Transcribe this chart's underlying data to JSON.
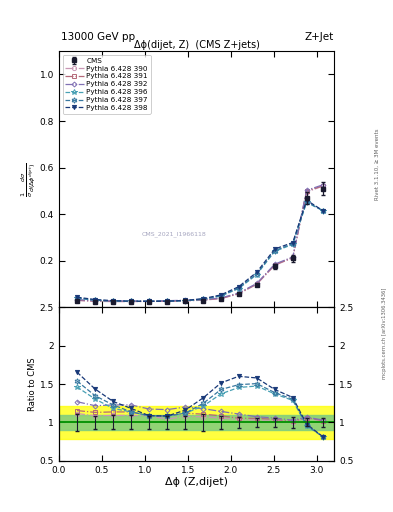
{
  "title_top": "13000 GeV pp",
  "title_right": "Z+Jet",
  "plot_title": "Δϕ(dijet, Z)  (CMS Z+jets)",
  "xlabel": "Δϕ (Z,dijet)",
  "ylabel_main": "$\\frac{1}{\\sigma}\\frac{d\\sigma}{d(\\Delta\\phi^{dijet})}$",
  "ylabel_ratio": "Ratio to CMS",
  "rivet_label": "Rivet 3.1.10, ≥ 3M events",
  "mcplots_label": "mcplots.cern.ch [arXiv:1306.3436]",
  "watermark": "CMS_2021_I1966118",
  "cms_x": [
    0.21,
    0.42,
    0.63,
    0.84,
    1.05,
    1.26,
    1.47,
    1.68,
    1.885,
    2.09,
    2.3,
    2.51,
    2.72,
    2.88,
    3.07
  ],
  "cms_y": [
    0.026,
    0.023,
    0.022,
    0.022,
    0.023,
    0.024,
    0.025,
    0.028,
    0.035,
    0.055,
    0.095,
    0.175,
    0.21,
    0.47,
    0.51
  ],
  "cms_yerr": [
    0.003,
    0.002,
    0.002,
    0.002,
    0.002,
    0.002,
    0.002,
    0.003,
    0.003,
    0.004,
    0.006,
    0.01,
    0.015,
    0.025,
    0.03
  ],
  "py390_x": [
    0.21,
    0.42,
    0.63,
    0.84,
    1.05,
    1.26,
    1.47,
    1.68,
    1.885,
    2.09,
    2.3,
    2.51,
    2.72,
    2.88,
    3.07
  ],
  "py390_y": [
    0.029,
    0.025,
    0.024,
    0.024,
    0.025,
    0.025,
    0.027,
    0.03,
    0.037,
    0.057,
    0.098,
    0.18,
    0.212,
    0.495,
    0.52
  ],
  "py391_x": [
    0.21,
    0.42,
    0.63,
    0.84,
    1.05,
    1.26,
    1.47,
    1.68,
    1.885,
    2.09,
    2.3,
    2.51,
    2.72,
    2.88,
    3.07
  ],
  "py391_y": [
    0.03,
    0.026,
    0.025,
    0.025,
    0.025,
    0.026,
    0.028,
    0.031,
    0.038,
    0.058,
    0.1,
    0.182,
    0.213,
    0.498,
    0.522
  ],
  "py392_x": [
    0.21,
    0.42,
    0.63,
    0.84,
    1.05,
    1.26,
    1.47,
    1.68,
    1.885,
    2.09,
    2.3,
    2.51,
    2.72,
    2.88,
    3.07
  ],
  "py392_y": [
    0.033,
    0.028,
    0.027,
    0.027,
    0.027,
    0.028,
    0.03,
    0.033,
    0.04,
    0.061,
    0.102,
    0.185,
    0.216,
    0.502,
    0.526
  ],
  "py396_x": [
    0.21,
    0.42,
    0.63,
    0.84,
    1.05,
    1.26,
    1.47,
    1.68,
    1.885,
    2.09,
    2.3,
    2.51,
    2.72,
    2.88,
    3.07
  ],
  "py396_y": [
    0.038,
    0.03,
    0.026,
    0.025,
    0.025,
    0.026,
    0.028,
    0.034,
    0.048,
    0.08,
    0.14,
    0.24,
    0.27,
    0.45,
    0.415
  ],
  "py397_x": [
    0.21,
    0.42,
    0.63,
    0.84,
    1.05,
    1.26,
    1.47,
    1.68,
    1.885,
    2.09,
    2.3,
    2.51,
    2.72,
    2.88,
    3.07
  ],
  "py397_y": [
    0.04,
    0.031,
    0.027,
    0.025,
    0.025,
    0.026,
    0.028,
    0.035,
    0.05,
    0.082,
    0.143,
    0.243,
    0.273,
    0.453,
    0.415
  ],
  "py398_x": [
    0.21,
    0.42,
    0.63,
    0.84,
    1.05,
    1.26,
    1.47,
    1.68,
    1.885,
    2.09,
    2.3,
    2.51,
    2.72,
    2.88,
    3.07
  ],
  "py398_y": [
    0.043,
    0.033,
    0.028,
    0.026,
    0.025,
    0.026,
    0.029,
    0.037,
    0.053,
    0.088,
    0.15,
    0.25,
    0.278,
    0.46,
    0.415
  ],
  "color_390": "#c896b4",
  "color_391": "#b46878",
  "color_392": "#8070b4",
  "color_396": "#48a0b4",
  "color_397": "#3878a0",
  "color_398": "#183878",
  "green_band_lo": 0.9,
  "green_band_hi": 1.1,
  "yellow_band_lo": 0.78,
  "yellow_band_hi": 1.22,
  "ylim_main": [
    0.0,
    1.1
  ],
  "ylim_ratio": [
    0.5,
    2.5
  ],
  "xlim": [
    0.0,
    3.2
  ],
  "yticks_main": [
    0.2,
    0.4,
    0.6,
    0.8,
    1.0
  ],
  "yticks_ratio": [
    0.5,
    1.0,
    1.5,
    2.0,
    2.5
  ]
}
